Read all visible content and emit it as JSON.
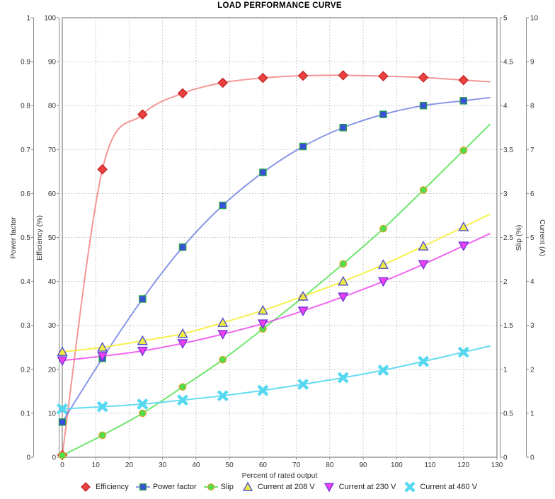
{
  "title": "LOAD PERFORMANCE CURVE",
  "axes": {
    "x": {
      "label": "Percent of rated output",
      "min": 0,
      "max": 130,
      "tick_step": 10
    },
    "power_factor": {
      "label": "Power factor",
      "min": 0,
      "max": 1,
      "tick_step": 0.1
    },
    "efficiency": {
      "label": "Efficiency (%)",
      "min": 0,
      "max": 100,
      "tick_step": 10
    },
    "slip": {
      "label": "Slip (%)",
      "min": 0,
      "max": 5,
      "tick_step": 0.5
    },
    "current": {
      "label": "Current (A)",
      "min": 0,
      "max": 10,
      "tick_step": 1
    }
  },
  "chart_data": {
    "type": "line",
    "title": "LOAD PERFORMANCE CURVE",
    "xlabel": "Percent of rated output",
    "xlim": [
      0,
      130
    ],
    "grid": true,
    "legend_position": "bottom",
    "x": [
      0,
      12,
      24,
      36,
      48,
      60,
      72,
      84,
      96,
      108,
      120
    ],
    "series": [
      {
        "name": "Efficiency",
        "axis": "efficiency",
        "marker": "diamond",
        "values": [
          0.5,
          65.5,
          78.0,
          82.8,
          85.2,
          86.3,
          86.8,
          86.9,
          86.7,
          86.4,
          85.8
        ],
        "color": "#ec4040",
        "marker_stroke": "#c22828",
        "line_color": "rgba(236,64,64,0.55)",
        "legend_line": false
      },
      {
        "name": "Power factor",
        "axis": "power_factor",
        "marker": "square",
        "values": [
          0.08,
          0.225,
          0.36,
          0.478,
          0.573,
          0.648,
          0.707,
          0.75,
          0.78,
          0.8,
          0.811
        ],
        "color": "#3a50d9",
        "marker_stroke": "#27a348",
        "line_color": "rgba(58,80,217,0.6)",
        "legend_line": true
      },
      {
        "name": "Slip",
        "axis": "slip",
        "marker": "circle",
        "values": [
          0.02,
          0.25,
          0.5,
          0.8,
          1.11,
          1.46,
          1.82,
          2.2,
          2.6,
          3.04,
          3.49
        ],
        "color": "#4ce04c",
        "marker_stroke": "#d9a32e",
        "line_color": "rgba(76,224,76,0.8)",
        "legend_line": true
      },
      {
        "name": "Current at 208 V",
        "axis": "current",
        "marker": "triangle-up",
        "values": [
          2.4,
          2.5,
          2.65,
          2.81,
          3.06,
          3.34,
          3.66,
          4.0,
          4.38,
          4.8,
          5.24
        ],
        "color": "#f0ea45",
        "marker_stroke": "#4949d0",
        "line_color": "rgba(245,240,70,0.95)",
        "legend_line": false
      },
      {
        "name": "Current at 230 V",
        "axis": "current",
        "marker": "triangle-down",
        "values": [
          2.2,
          2.3,
          2.42,
          2.59,
          2.8,
          3.04,
          3.33,
          3.65,
          4.0,
          4.39,
          4.81
        ],
        "color": "#ee40ee",
        "marker_stroke": "#6b36d9",
        "line_color": "rgba(238,64,238,0.8)",
        "legend_line": false
      },
      {
        "name": "Current at 460 V",
        "axis": "current",
        "marker": "x",
        "values": [
          1.1,
          1.15,
          1.21,
          1.3,
          1.4,
          1.52,
          1.66,
          1.81,
          1.98,
          2.18,
          2.39
        ],
        "color": "#54d8f0",
        "marker_stroke": "none",
        "line_color": "rgba(84,216,240,0.9)",
        "legend_line": false
      }
    ]
  },
  "colors": {
    "grid": "#bbbbbb",
    "axis_line": "#8a8a8a",
    "plot_border": "#808080",
    "tick_text": "#333333"
  }
}
